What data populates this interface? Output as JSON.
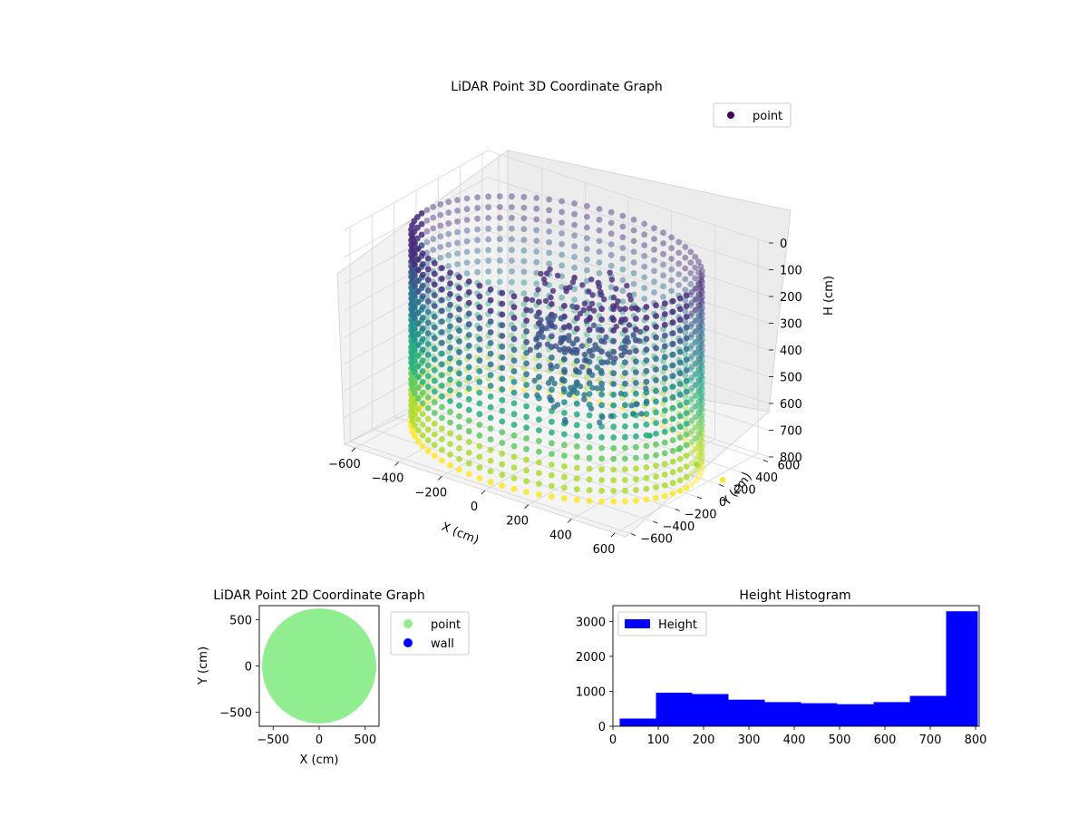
{
  "chart_data": [
    {
      "type": "scatter",
      "title": "LiDAR Point 3D Coordinate Graph",
      "xlabel": "X (cm)",
      "ylabel": "Y (cm)",
      "zlabel": "H (cm)",
      "x_ticks": [
        "−600",
        "−400",
        "−200",
        "0",
        "200",
        "400",
        "600"
      ],
      "y_ticks": [
        "−600",
        "−400",
        "−200",
        "0",
        "200",
        "400",
        "600"
      ],
      "z_ticks": [
        "0",
        "100",
        "200",
        "300",
        "400",
        "500",
        "600",
        "700",
        "800"
      ],
      "xlim": [
        -650,
        650
      ],
      "ylim": [
        -650,
        650
      ],
      "zlim": [
        0,
        800
      ],
      "z_inverted": true,
      "grid": true,
      "legend": {
        "position": "top-right",
        "entries": [
          {
            "name": "point",
            "color": "#440154"
          }
        ]
      },
      "colormap": "viridis",
      "shape": "hollow cylindrical wall of points, radius about 600 cm, height 0-800 cm, with a cluster of scattered interior points near the center"
    },
    {
      "type": "scatter",
      "title": "LiDAR Point 2D Coordinate Graph",
      "xlabel": "X (cm)",
      "ylabel": "Y (cm)",
      "x_ticks": [
        "−500",
        "0",
        "500"
      ],
      "y_ticks": [
        "−500",
        "0",
        "500"
      ],
      "xlim": [
        -650,
        650
      ],
      "ylim": [
        -650,
        650
      ],
      "legend": {
        "position": "outside-right",
        "entries": [
          {
            "name": "point",
            "color": "#90ee90"
          },
          {
            "name": "wall",
            "color": "#0000ff"
          }
        ]
      },
      "shape": "filled disc of points with radius about 620 cm centered at origin"
    },
    {
      "type": "bar",
      "title": "Height Histogram",
      "xlabel": "",
      "ylabel": "",
      "legend": {
        "position": "top-left",
        "entries": [
          {
            "name": "Height",
            "color": "#0000ff"
          }
        ]
      },
      "bin_edges": [
        15,
        95,
        175,
        255,
        335,
        415,
        495,
        575,
        655,
        735,
        805
      ],
      "values": [
        220,
        960,
        920,
        760,
        690,
        660,
        630,
        690,
        870,
        3290
      ],
      "xlim": [
        0,
        808
      ],
      "ylim": [
        0,
        3450
      ],
      "x_ticks": [
        "0",
        "100",
        "200",
        "300",
        "400",
        "500",
        "600",
        "700",
        "800"
      ],
      "y_ticks": [
        "0",
        "1000",
        "2000",
        "3000"
      ],
      "color": "#0000ff"
    }
  ]
}
